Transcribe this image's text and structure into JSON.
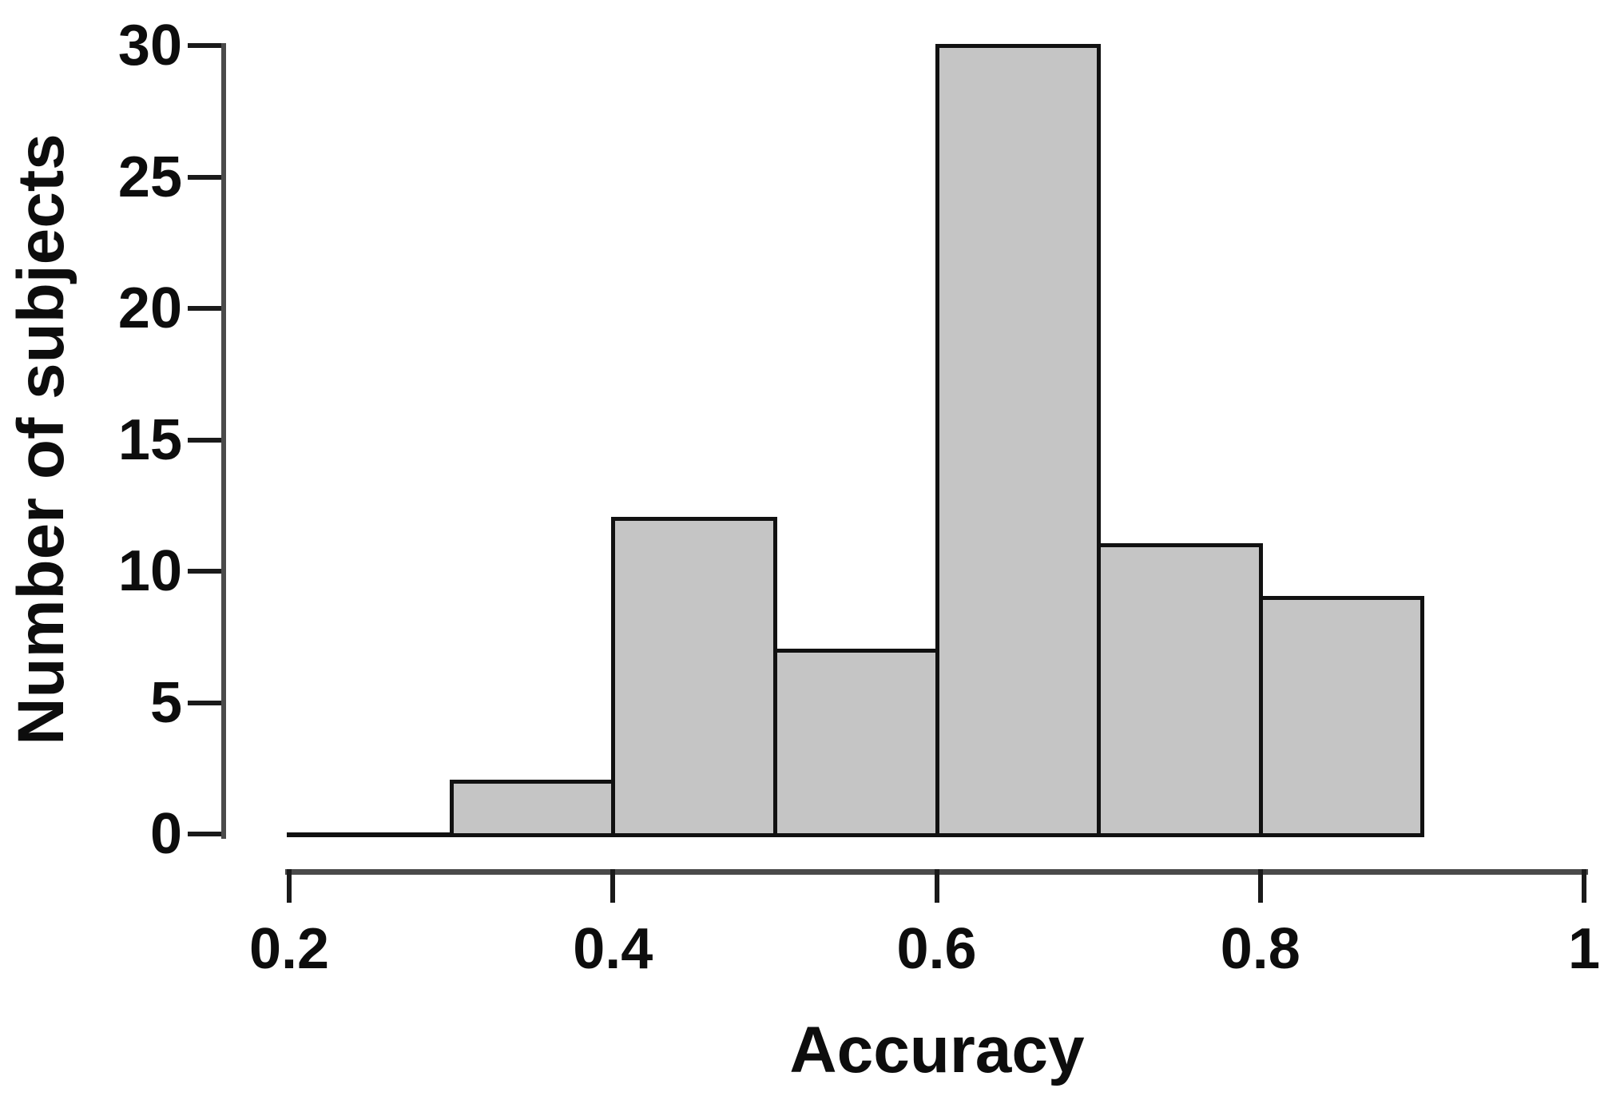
{
  "chart_data": {
    "type": "bar",
    "subtype": "histogram",
    "title": "",
    "xlabel": "Accuracy",
    "ylabel": "Number of subjects",
    "xlim": [
      0.2,
      1.0
    ],
    "ylim": [
      0,
      30
    ],
    "grid": false,
    "legend": "none",
    "bin_width": 0.1,
    "bins": [
      {
        "x0": 0.2,
        "x1": 0.3,
        "count": 0
      },
      {
        "x0": 0.3,
        "x1": 0.4,
        "count": 2
      },
      {
        "x0": 0.4,
        "x1": 0.5,
        "count": 12
      },
      {
        "x0": 0.5,
        "x1": 0.6,
        "count": 7
      },
      {
        "x0": 0.6,
        "x1": 0.7,
        "count": 30
      },
      {
        "x0": 0.7,
        "x1": 0.8,
        "count": 11
      },
      {
        "x0": 0.8,
        "x1": 0.9,
        "count": 9
      }
    ],
    "x_ticks": [
      {
        "value": 0.2,
        "label": "0.2"
      },
      {
        "value": 0.4,
        "label": "0.4"
      },
      {
        "value": 0.6,
        "label": "0.6"
      },
      {
        "value": 0.8,
        "label": "0.8"
      },
      {
        "value": 1.0,
        "label": "1"
      }
    ],
    "y_ticks": [
      {
        "value": 0,
        "label": "0"
      },
      {
        "value": 5,
        "label": "5"
      },
      {
        "value": 10,
        "label": "10"
      },
      {
        "value": 15,
        "label": "15"
      },
      {
        "value": 20,
        "label": "20"
      },
      {
        "value": 25,
        "label": "25"
      },
      {
        "value": 30,
        "label": "30"
      }
    ],
    "colors": {
      "bar_fill": "#c5c5c5",
      "bar_border": "#111111",
      "axis_line": "#4a4a4a",
      "tick_mark": "#1a1a1a",
      "text": "#0d0d0d",
      "background": "#ffffff"
    }
  }
}
